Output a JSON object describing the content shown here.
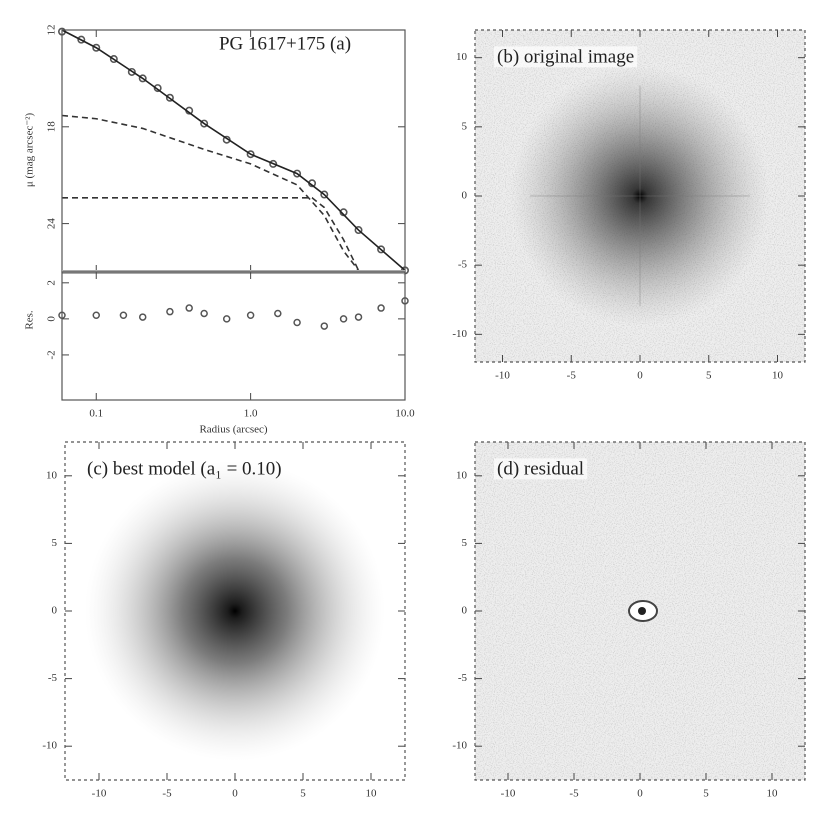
{
  "chart_data": [
    {
      "type": "line",
      "title": "PG 1617+175 (a)",
      "ylabel": "μ (mag arcsec⁻²)",
      "xlog": true,
      "y_inverted": true,
      "xlim": [
        0.06,
        10
      ],
      "ylim": [
        12,
        27
      ],
      "xticks": [
        0.1,
        1,
        10
      ],
      "yticks": [
        12,
        18,
        24
      ],
      "series": [
        {
          "style": "points",
          "color": "#555555",
          "x": [
            0.06,
            0.08,
            0.1,
            0.13,
            0.17,
            0.2,
            0.25,
            0.3,
            0.4,
            0.5,
            0.7,
            1.0,
            1.4,
            2.0,
            2.5,
            3.0,
            4.0,
            5.0,
            7.0,
            10.0
          ],
          "values": [
            12.1,
            12.6,
            13.1,
            13.8,
            14.6,
            15.0,
            15.6,
            16.2,
            17.0,
            17.8,
            18.8,
            19.7,
            20.3,
            20.9,
            21.5,
            22.2,
            23.3,
            24.4,
            25.6,
            26.9
          ]
        },
        {
          "style": "solid",
          "color": "#222222",
          "x": [
            0.06,
            0.1,
            0.2,
            0.5,
            1,
            2,
            3,
            5,
            10
          ],
          "values": [
            12.0,
            13.1,
            15.0,
            17.8,
            19.7,
            20.9,
            22.2,
            24.4,
            26.9
          ]
        },
        {
          "style": "dashed",
          "color": "#333333",
          "x": [
            0.06,
            0.1,
            0.2,
            0.5,
            1,
            2,
            3,
            4,
            5
          ],
          "values": [
            17.3,
            17.5,
            18.1,
            19.4,
            20.3,
            21.6,
            23.5,
            25.7,
            26.9
          ]
        },
        {
          "style": "dashed",
          "color": "#333333",
          "x": [
            0.06,
            1,
            2.5,
            3,
            4,
            5
          ],
          "values": [
            22.4,
            22.4,
            22.4,
            23.0,
            25.0,
            26.9
          ]
        }
      ]
    },
    {
      "type": "scatter",
      "xlabel": "Radius (arcsec)",
      "ylabel": "Res.",
      "xlog": true,
      "xlim": [
        0.06,
        10
      ],
      "ylim": [
        -4.5,
        2.6
      ],
      "xticks": [
        0.1,
        {
          "value": 1,
          "label": "1.0"
        },
        {
          "value": 10,
          "label": "10.0"
        }
      ],
      "yticks": [
        2,
        0,
        -2
      ],
      "color": "#555555",
      "x": [
        0.06,
        0.1,
        0.15,
        0.2,
        0.3,
        0.4,
        0.5,
        0.7,
        1,
        1.5,
        2,
        3,
        4,
        5,
        7,
        10
      ],
      "values": [
        0.2,
        0.2,
        0.2,
        0.1,
        0.4,
        0.6,
        0.3,
        0.0,
        0.2,
        0.3,
        -0.2,
        -0.4,
        0.0,
        0.1,
        0.6,
        1.0
      ]
    },
    {
      "type": "image",
      "title": "(b) original image",
      "image": "original",
      "xlim": [
        -12,
        12
      ],
      "ylim": [
        -12,
        12
      ],
      "xticks": [
        -10,
        -5,
        0,
        5,
        10
      ],
      "yticks": [
        -10,
        -5,
        0,
        5,
        10
      ]
    },
    {
      "type": "image",
      "title": "(c) best model (a₁ = 0.10)",
      "image": "model",
      "xlim": [
        -12.5,
        12.5
      ],
      "ylim": [
        -12.5,
        12.5
      ],
      "xticks": [
        -10,
        -5,
        0,
        5,
        10
      ],
      "yticks": [
        -10,
        -5,
        0,
        5,
        10
      ]
    },
    {
      "type": "image",
      "title": "(d) residual",
      "image": "residual",
      "xlim": [
        -12.5,
        12.5
      ],
      "ylim": [
        -12.5,
        12.5
      ],
      "xticks": [
        -10,
        -5,
        0,
        5,
        10
      ],
      "yticks": [
        -10,
        -5,
        0,
        5,
        10
      ]
    }
  ]
}
